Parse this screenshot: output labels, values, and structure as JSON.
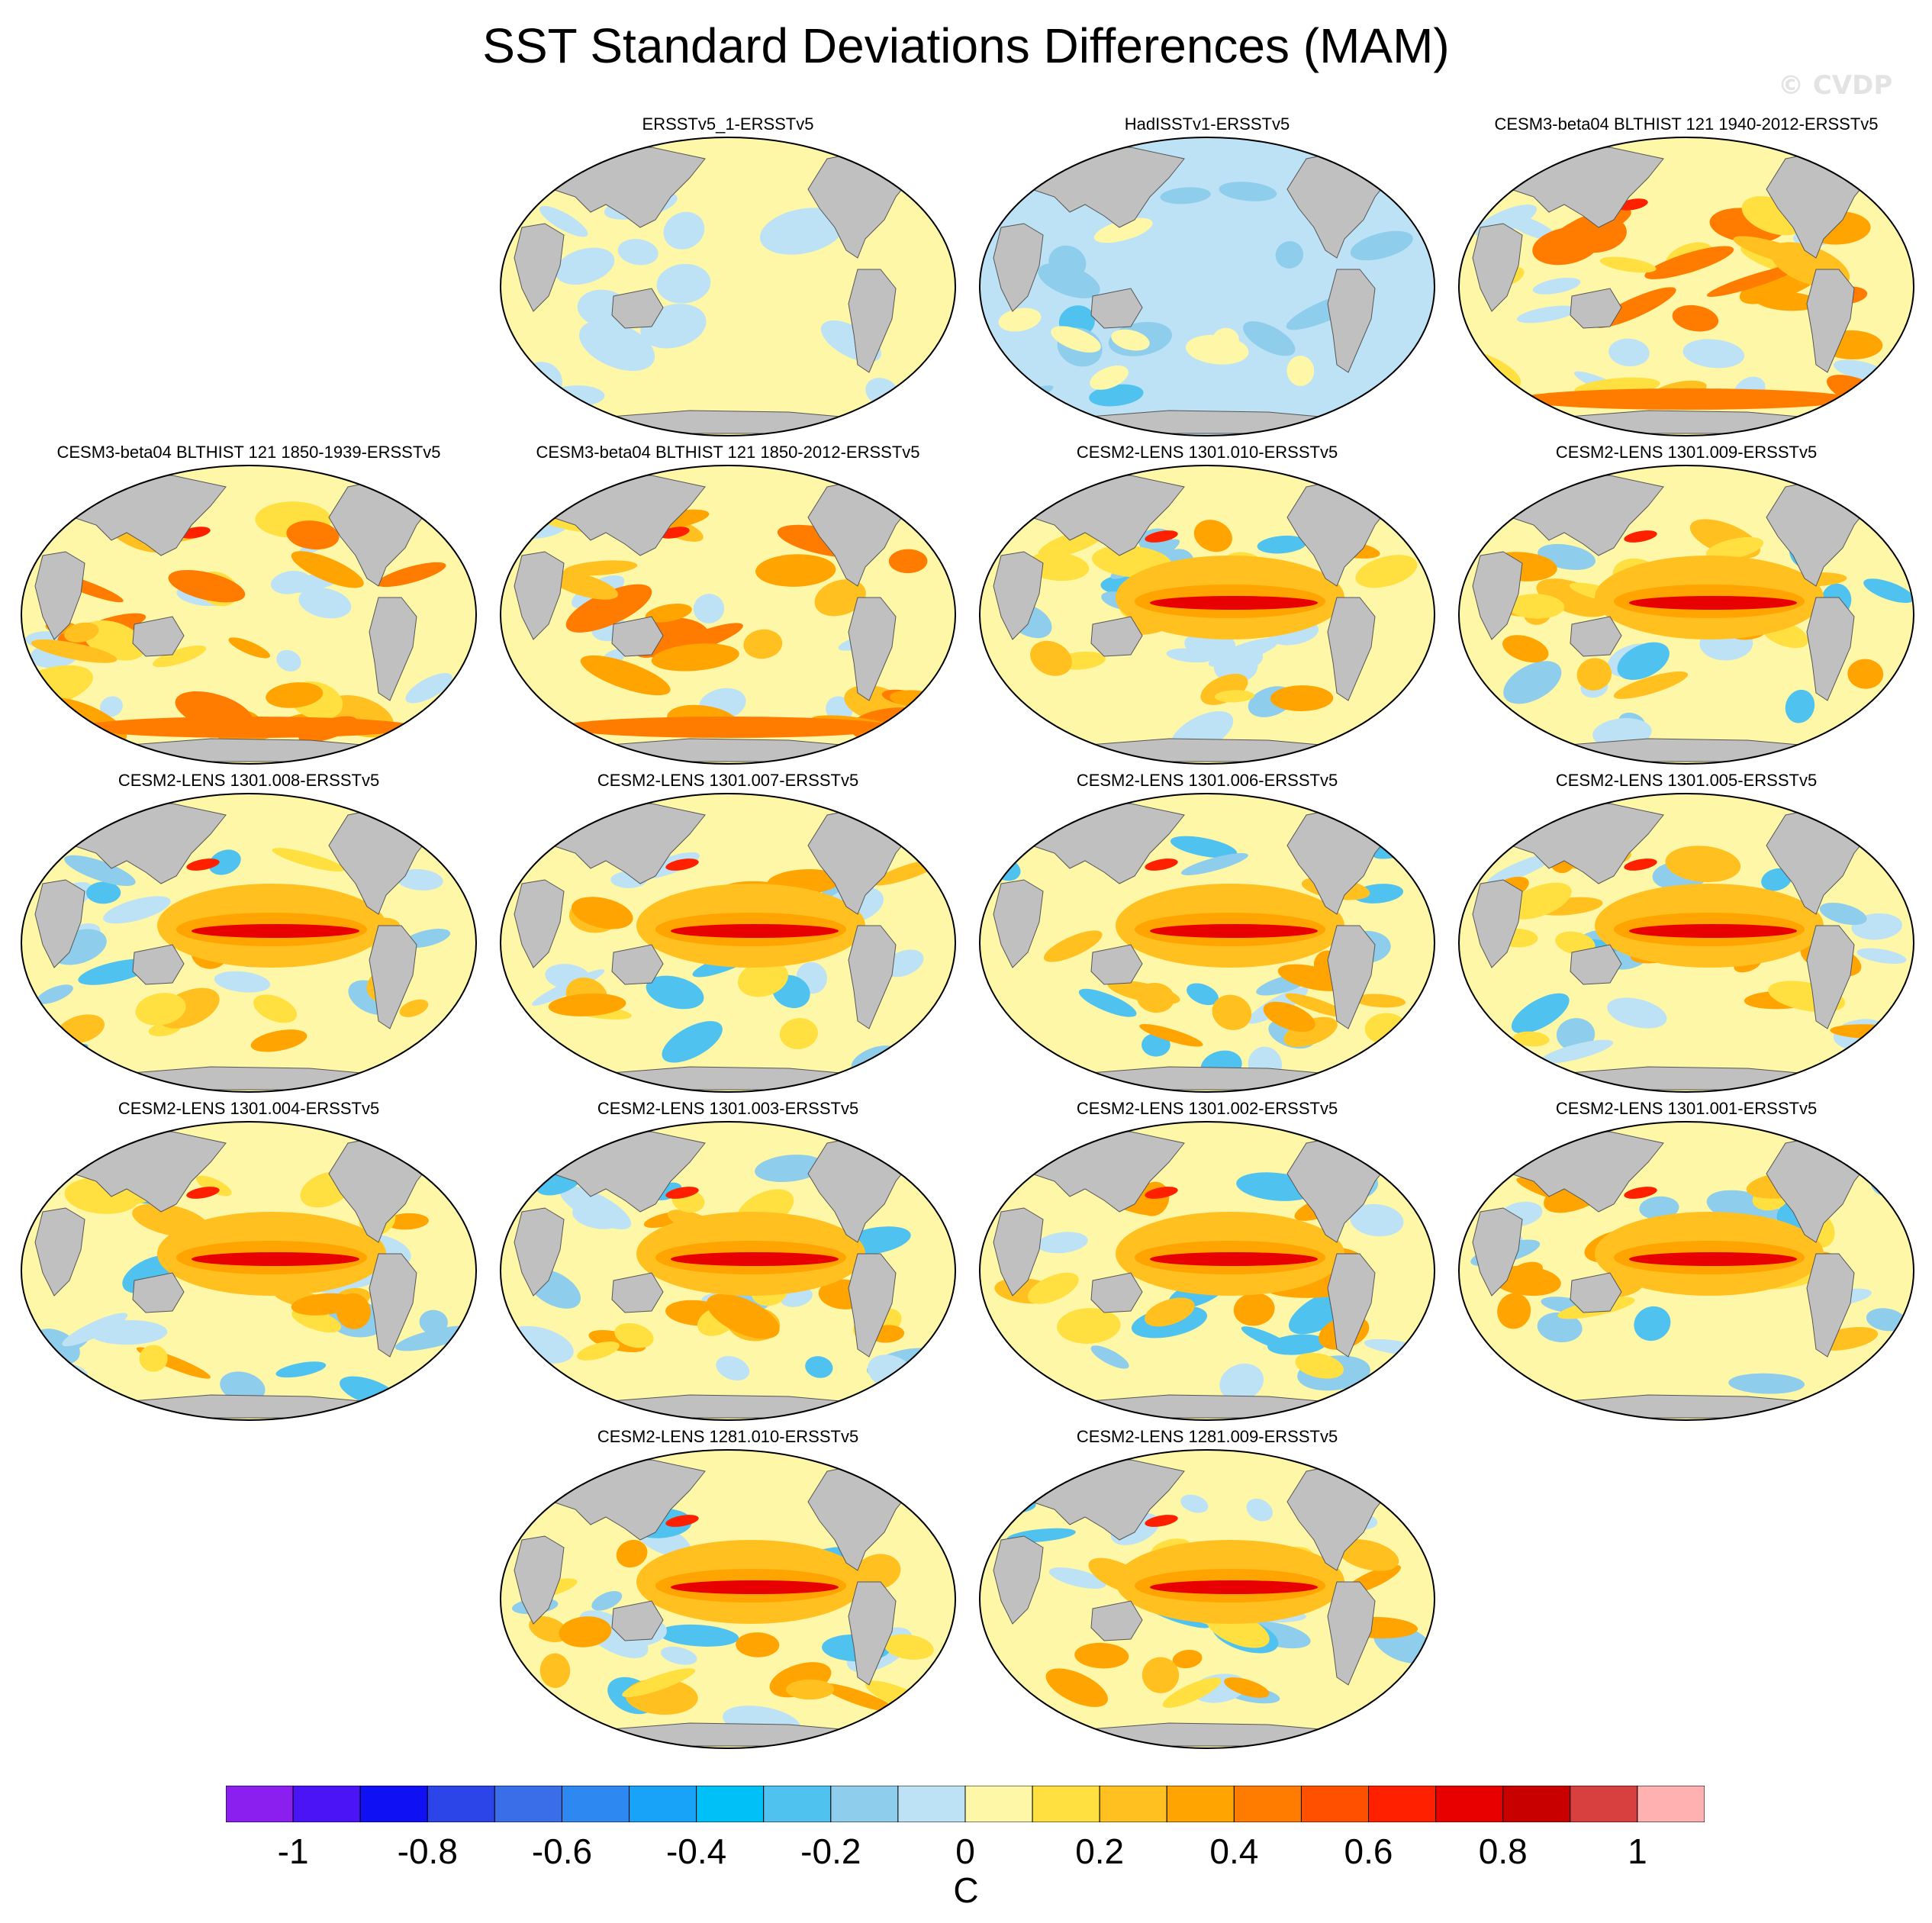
{
  "title": "SST Standard Deviations Differences (MAM)",
  "watermark": "© CVDP",
  "panels": [
    {
      "label": "ERSSTv5_1-ERSSTv5",
      "pattern": "neutral"
    },
    {
      "label": "HadISSTv1-ERSSTv5",
      "pattern": "cool"
    },
    {
      "label": "CESM3-beta04 BLTHIST 121 1940-2012-ERSSTv5",
      "pattern": "warm"
    },
    {
      "label": "CESM3-beta04 BLTHIST 121 1850-1939-ERSSTv5",
      "pattern": "warm"
    },
    {
      "label": "CESM3-beta04 BLTHIST 121 1850-2012-ERSSTv5",
      "pattern": "warm"
    },
    {
      "label": "CESM2-LENS 1301.010-ERSSTv5",
      "pattern": "enso"
    },
    {
      "label": "CESM2-LENS 1301.009-ERSSTv5",
      "pattern": "enso"
    },
    {
      "label": "CESM2-LENS 1301.008-ERSSTv5",
      "pattern": "enso"
    },
    {
      "label": "CESM2-LENS 1301.007-ERSSTv5",
      "pattern": "enso"
    },
    {
      "label": "CESM2-LENS 1301.006-ERSSTv5",
      "pattern": "enso"
    },
    {
      "label": "CESM2-LENS 1301.005-ERSSTv5",
      "pattern": "enso"
    },
    {
      "label": "CESM2-LENS 1301.004-ERSSTv5",
      "pattern": "enso"
    },
    {
      "label": "CESM2-LENS 1301.003-ERSSTv5",
      "pattern": "enso"
    },
    {
      "label": "CESM2-LENS 1301.002-ERSSTv5",
      "pattern": "enso"
    },
    {
      "label": "CESM2-LENS 1301.001-ERSSTv5",
      "pattern": "enso"
    },
    {
      "label": "CESM2-LENS 1281.010-ERSSTv5",
      "pattern": "enso"
    },
    {
      "label": "CESM2-LENS 1281.009-ERSSTv5",
      "pattern": "enso"
    }
  ],
  "colorbar": {
    "colors": [
      "#8b1ff0",
      "#4b14f6",
      "#1010f5",
      "#2b45e8",
      "#3a6ee8",
      "#2e88f2",
      "#18a2f8",
      "#00c0f8",
      "#50c2f0",
      "#8ecdec",
      "#bde2f5",
      "#fff7a8",
      "#ffe040",
      "#ffc020",
      "#ffa400",
      "#ff7c00",
      "#ff5000",
      "#ff2000",
      "#e80000",
      "#c80000",
      "#d84040",
      "#ffb0b0"
    ],
    "range": [
      -1.1,
      1.1
    ],
    "ticks": [
      "-1",
      "-0.8",
      "-0.6",
      "-0.4",
      "-0.2",
      "0",
      "0.2",
      "0.4",
      "0.6",
      "0.8",
      "1"
    ],
    "tick_values": [
      -1,
      -0.8,
      -0.6,
      -0.4,
      -0.2,
      0,
      0.2,
      0.4,
      0.6,
      0.8,
      1
    ],
    "units": "C"
  },
  "land_color": "#c0c0c0"
}
